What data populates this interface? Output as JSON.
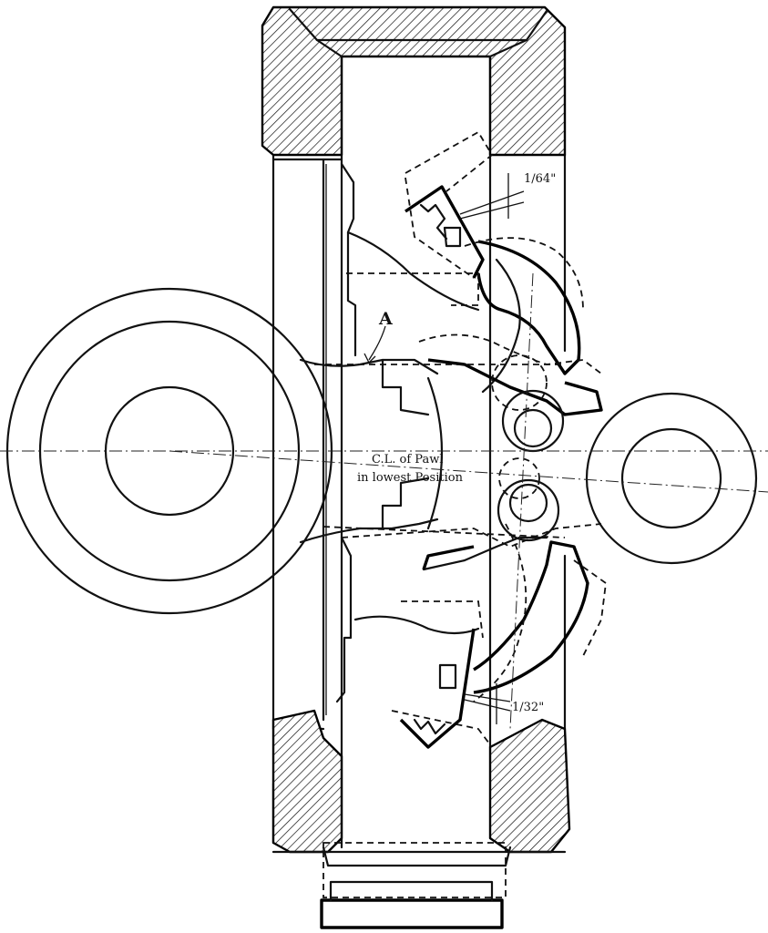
{
  "labels": {
    "part_a": "A",
    "centerline_line1": "C.L. of Pawl",
    "centerline_line2": "in lowest Position",
    "clearance_top": "1/64\"",
    "clearance_bottom": "1/32\""
  }
}
